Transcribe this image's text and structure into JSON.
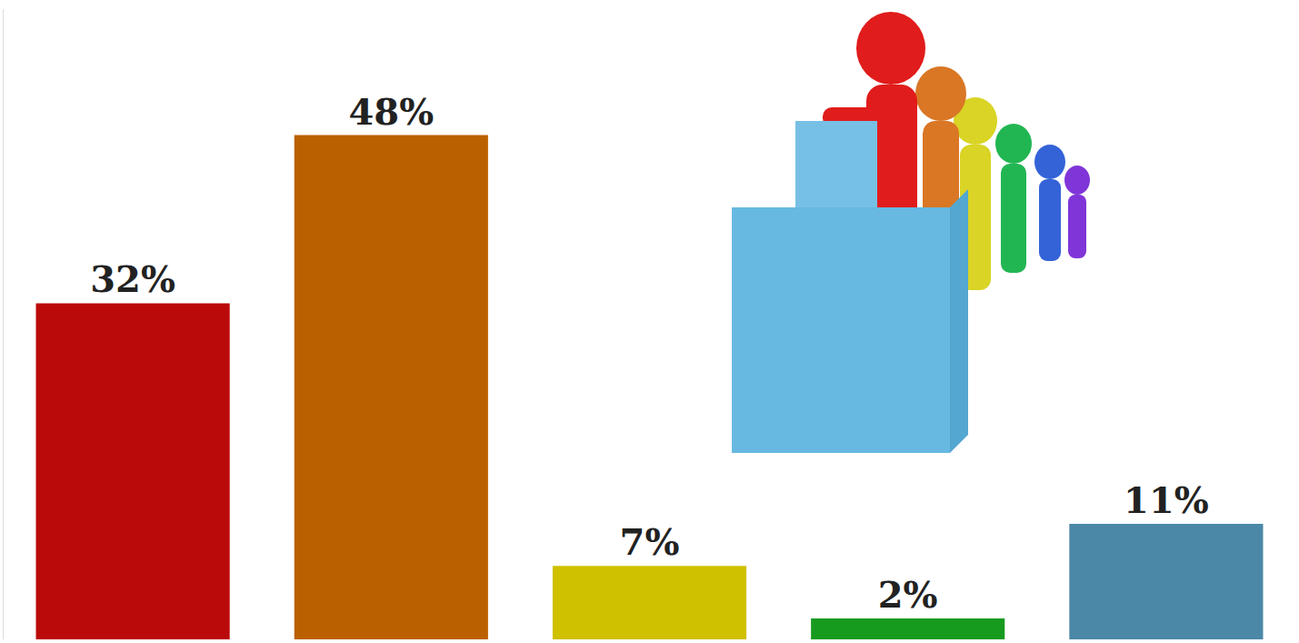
{
  "chart_data": {
    "type": "bar",
    "categories": [
      null,
      null,
      null,
      null,
      null
    ],
    "values": [
      32,
      48,
      7,
      2,
      11
    ],
    "value_labels": [
      "32%",
      "48%",
      "7%",
      "2%",
      "11%"
    ],
    "colors": [
      "#bb0a0a",
      "#bb6000",
      "#cfc000",
      "#179b1f",
      "#4b88a8"
    ],
    "ylim": [
      0,
      60
    ],
    "data_labels": true,
    "tick_labels": false,
    "grid": false
  }
}
